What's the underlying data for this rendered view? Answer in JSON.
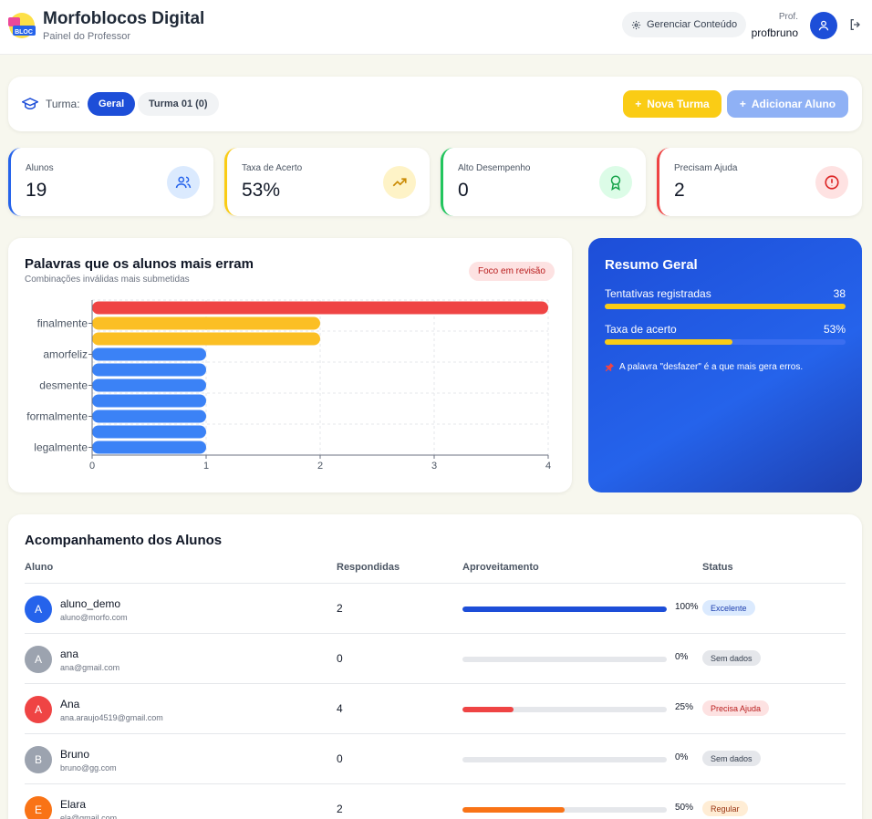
{
  "header": {
    "title": "Morfoblocos Digital",
    "subtitle": "Painel do Professor",
    "logo_text": "BLOC",
    "manage_label": "Gerenciar Conteúdo",
    "prof_label": "Prof.",
    "username": "profbruno"
  },
  "turma": {
    "label": "Turma:",
    "tabs": [
      "Geral",
      "Turma 01 (0)"
    ],
    "new_class_label": "Nova Turma",
    "add_student_label": "Adicionar Aluno"
  },
  "stats": [
    {
      "label": "Alunos",
      "value": "19",
      "accent": "#2563eb",
      "icon": "users-icon"
    },
    {
      "label": "Taxa de Acerto",
      "value": "53%",
      "accent": "#facc15",
      "icon": "trending-up-icon"
    },
    {
      "label": "Alto Desempenho",
      "value": "0",
      "accent": "#22c55e",
      "icon": "award-icon"
    },
    {
      "label": "Precisam Ajuda",
      "value": "2",
      "accent": "#ef4444",
      "icon": "alert-circle-icon"
    }
  ],
  "chart_data": {
    "type": "bar",
    "orientation": "horizontal",
    "title": "Palavras que os alunos mais erram",
    "subtitle": "Combinações inválidas mais submetidas",
    "badge": "Foco em revisão",
    "categories": [
      "",
      "finalmente",
      "",
      "amorfeliz",
      "",
      "desmente",
      "",
      "formalmente",
      "",
      "legalmente"
    ],
    "values": [
      4,
      2,
      2,
      1,
      1,
      1,
      1,
      1,
      1,
      1
    ],
    "bar_colors": [
      "#ef4444",
      "#fbbf24",
      "#fbbf24",
      "#3b82f6",
      "#3b82f6",
      "#3b82f6",
      "#3b82f6",
      "#3b82f6",
      "#3b82f6",
      "#3b82f6"
    ],
    "xlim": [
      0,
      4
    ],
    "xticks": [
      0,
      1,
      2,
      3,
      4
    ],
    "grid": true
  },
  "summary": {
    "title": "Resumo Geral",
    "attempts_label": "Tentativas registradas",
    "attempts_value": "38",
    "attempts_fill": 1.0,
    "accuracy_label": "Taxa de acerto",
    "accuracy_value": "53%",
    "accuracy_fill": 0.53,
    "note": "A palavra \"desfazer\" é a que mais gera erros."
  },
  "students": {
    "title": "Acompanhamento dos Alunos",
    "columns": [
      "Aluno",
      "Respondidas",
      "Aproveitamento",
      "Status"
    ],
    "rows": [
      {
        "initial": "A",
        "name": "aluno_demo",
        "email": "aluno@morfo.com",
        "answered": "2",
        "pct": "100%",
        "fill": 1.0,
        "status": "Excelente",
        "avatar_color": "#2563eb",
        "bar_color": "#1d4ed8",
        "status_bg": "#dbeafe",
        "status_fg": "#1e40af"
      },
      {
        "initial": "A",
        "name": "ana",
        "email": "ana@gmail.com",
        "answered": "0",
        "pct": "0%",
        "fill": 0.0,
        "status": "Sem dados",
        "avatar_color": "#9ca3af",
        "bar_color": "#9ca3af",
        "status_bg": "#e5e7eb",
        "status_fg": "#374151"
      },
      {
        "initial": "A",
        "name": "Ana",
        "email": "ana.araujo4519@gmail.com",
        "answered": "4",
        "pct": "25%",
        "fill": 0.25,
        "status": "Precisa Ajuda",
        "avatar_color": "#ef4444",
        "bar_color": "#ef4444",
        "status_bg": "#fde2e2",
        "status_fg": "#b91c1c"
      },
      {
        "initial": "B",
        "name": "Bruno",
        "email": "bruno@gg.com",
        "answered": "0",
        "pct": "0%",
        "fill": 0.0,
        "status": "Sem dados",
        "avatar_color": "#9ca3af",
        "bar_color": "#9ca3af",
        "status_bg": "#e5e7eb",
        "status_fg": "#374151"
      },
      {
        "initial": "E",
        "name": "Elara",
        "email": "ela@gmail.com",
        "answered": "2",
        "pct": "50%",
        "fill": 0.5,
        "status": "Regular",
        "avatar_color": "#f97316",
        "bar_color": "#f97316",
        "status_bg": "#ffedd5",
        "status_fg": "#9a3412"
      }
    ]
  }
}
